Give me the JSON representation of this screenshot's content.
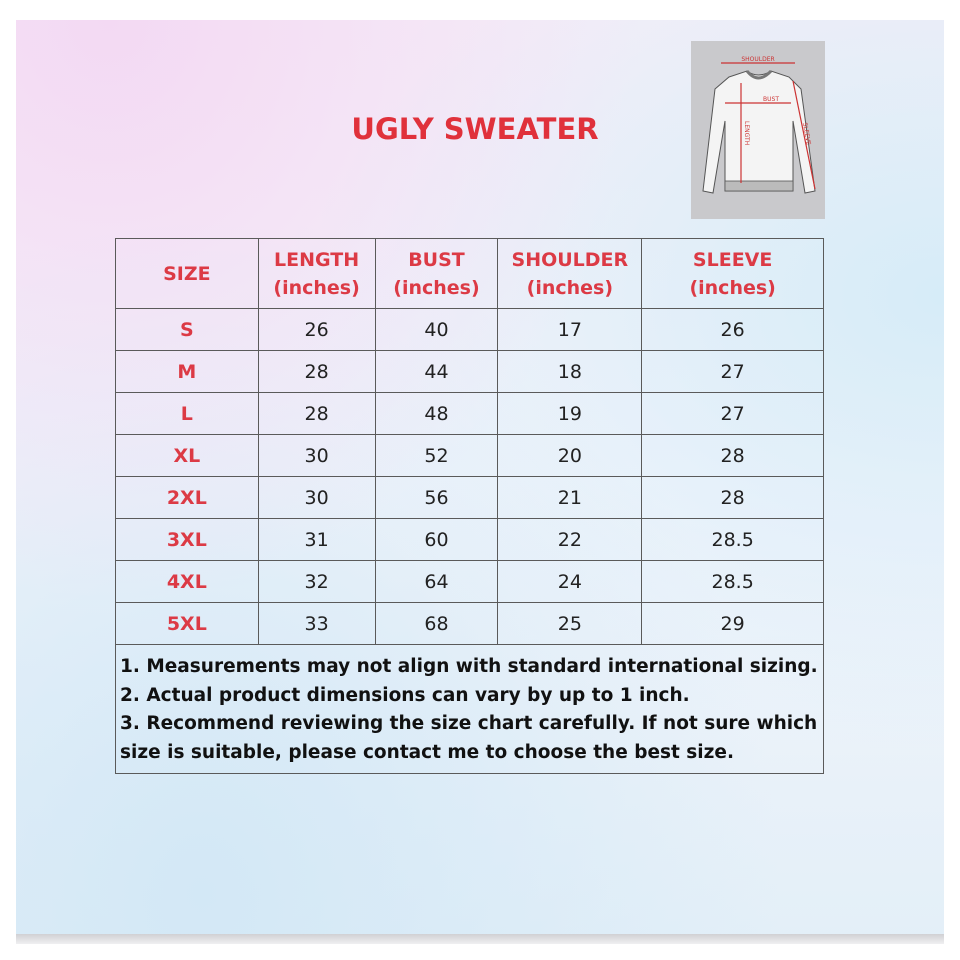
{
  "title": "UGLY SWEATER",
  "diagram": {
    "labels": {
      "shoulder": "SHOULDER",
      "bust": "BUST",
      "length": "LENGTH",
      "sleeve": "SLEEVE"
    }
  },
  "table": {
    "headers": [
      {
        "name": "SIZE",
        "unit": ""
      },
      {
        "name": "LENGTH",
        "unit": "(inches)"
      },
      {
        "name": "BUST",
        "unit": "(inches)"
      },
      {
        "name": "SHOULDER",
        "unit": "(inches)"
      },
      {
        "name": "SLEEVE",
        "unit": "(inches)"
      }
    ],
    "rows": [
      [
        "S",
        "26",
        "40",
        "17",
        "26"
      ],
      [
        "M",
        "28",
        "44",
        "18",
        "27"
      ],
      [
        "L",
        "28",
        "48",
        "19",
        "27"
      ],
      [
        "XL",
        "30",
        "52",
        "20",
        "28"
      ],
      [
        "2XL",
        "30",
        "56",
        "21",
        "28"
      ],
      [
        "3XL",
        "31",
        "60",
        "22",
        "28.5"
      ],
      [
        "4XL",
        "32",
        "64",
        "24",
        "28.5"
      ],
      [
        "5XL",
        "33",
        "68",
        "25",
        "29"
      ]
    ]
  },
  "notes": [
    "1. Measurements may not align with standard international sizing.",
    "2. Actual product dimensions can vary by up to 1 inch.",
    "3. Recommend reviewing the size chart carefully. If not sure which size is suitable, please contact me to choose the best size."
  ],
  "colors": {
    "accent": "#dc3a45"
  }
}
